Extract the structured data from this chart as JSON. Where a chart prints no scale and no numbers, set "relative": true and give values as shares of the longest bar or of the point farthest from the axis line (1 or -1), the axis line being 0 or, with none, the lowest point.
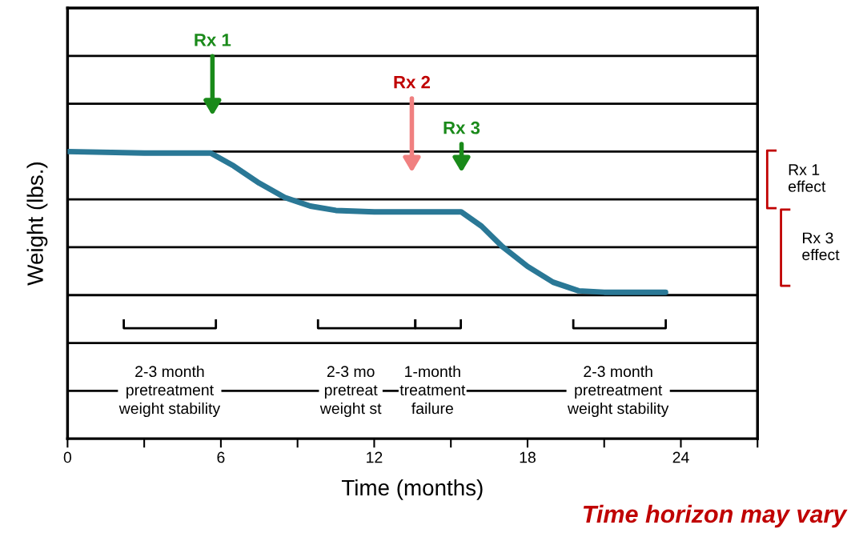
{
  "chart_data": {
    "type": "line",
    "relative": true,
    "xlabel": "Time (months)",
    "ylabel": "Weight (lbs.)",
    "xlim": [
      0,
      27
    ],
    "xticks": [
      0,
      {
        "value": 3,
        "label": null
      },
      6,
      {
        "value": 9,
        "label": null
      },
      12,
      {
        "value": 15,
        "label": null
      },
      18,
      {
        "value": 21,
        "label": null
      },
      24,
      {
        "value": 27,
        "label": null
      }
    ],
    "grid": "y",
    "legend": false,
    "series": [
      {
        "color": "#2a7896",
        "x": [
          0,
          3,
          5.6,
          6.5,
          7.5,
          8.5,
          9.5,
          10.5,
          12,
          15.4,
          16.2,
          17,
          18,
          19,
          20,
          21,
          23.4
        ],
        "values": [
          1.0,
          0.995,
          0.995,
          0.95,
          0.89,
          0.84,
          0.81,
          0.795,
          0.79,
          0.79,
          0.74,
          0.67,
          0.6,
          0.545,
          0.515,
          0.51,
          0.51
        ]
      }
    ],
    "annotations": [
      "Rx 1",
      "Rx 2",
      "Rx 3",
      "2-3 month\npretreatment\nweight stability",
      "2-3 mo\npretreat\nweight st",
      "1-month\ntreatment\nfailure",
      "2-3 month\npretreatment\nweight stability",
      "Rx 1\neffect",
      "Rx 3\neffect",
      "Time horizon may vary"
    ]
  }
}
